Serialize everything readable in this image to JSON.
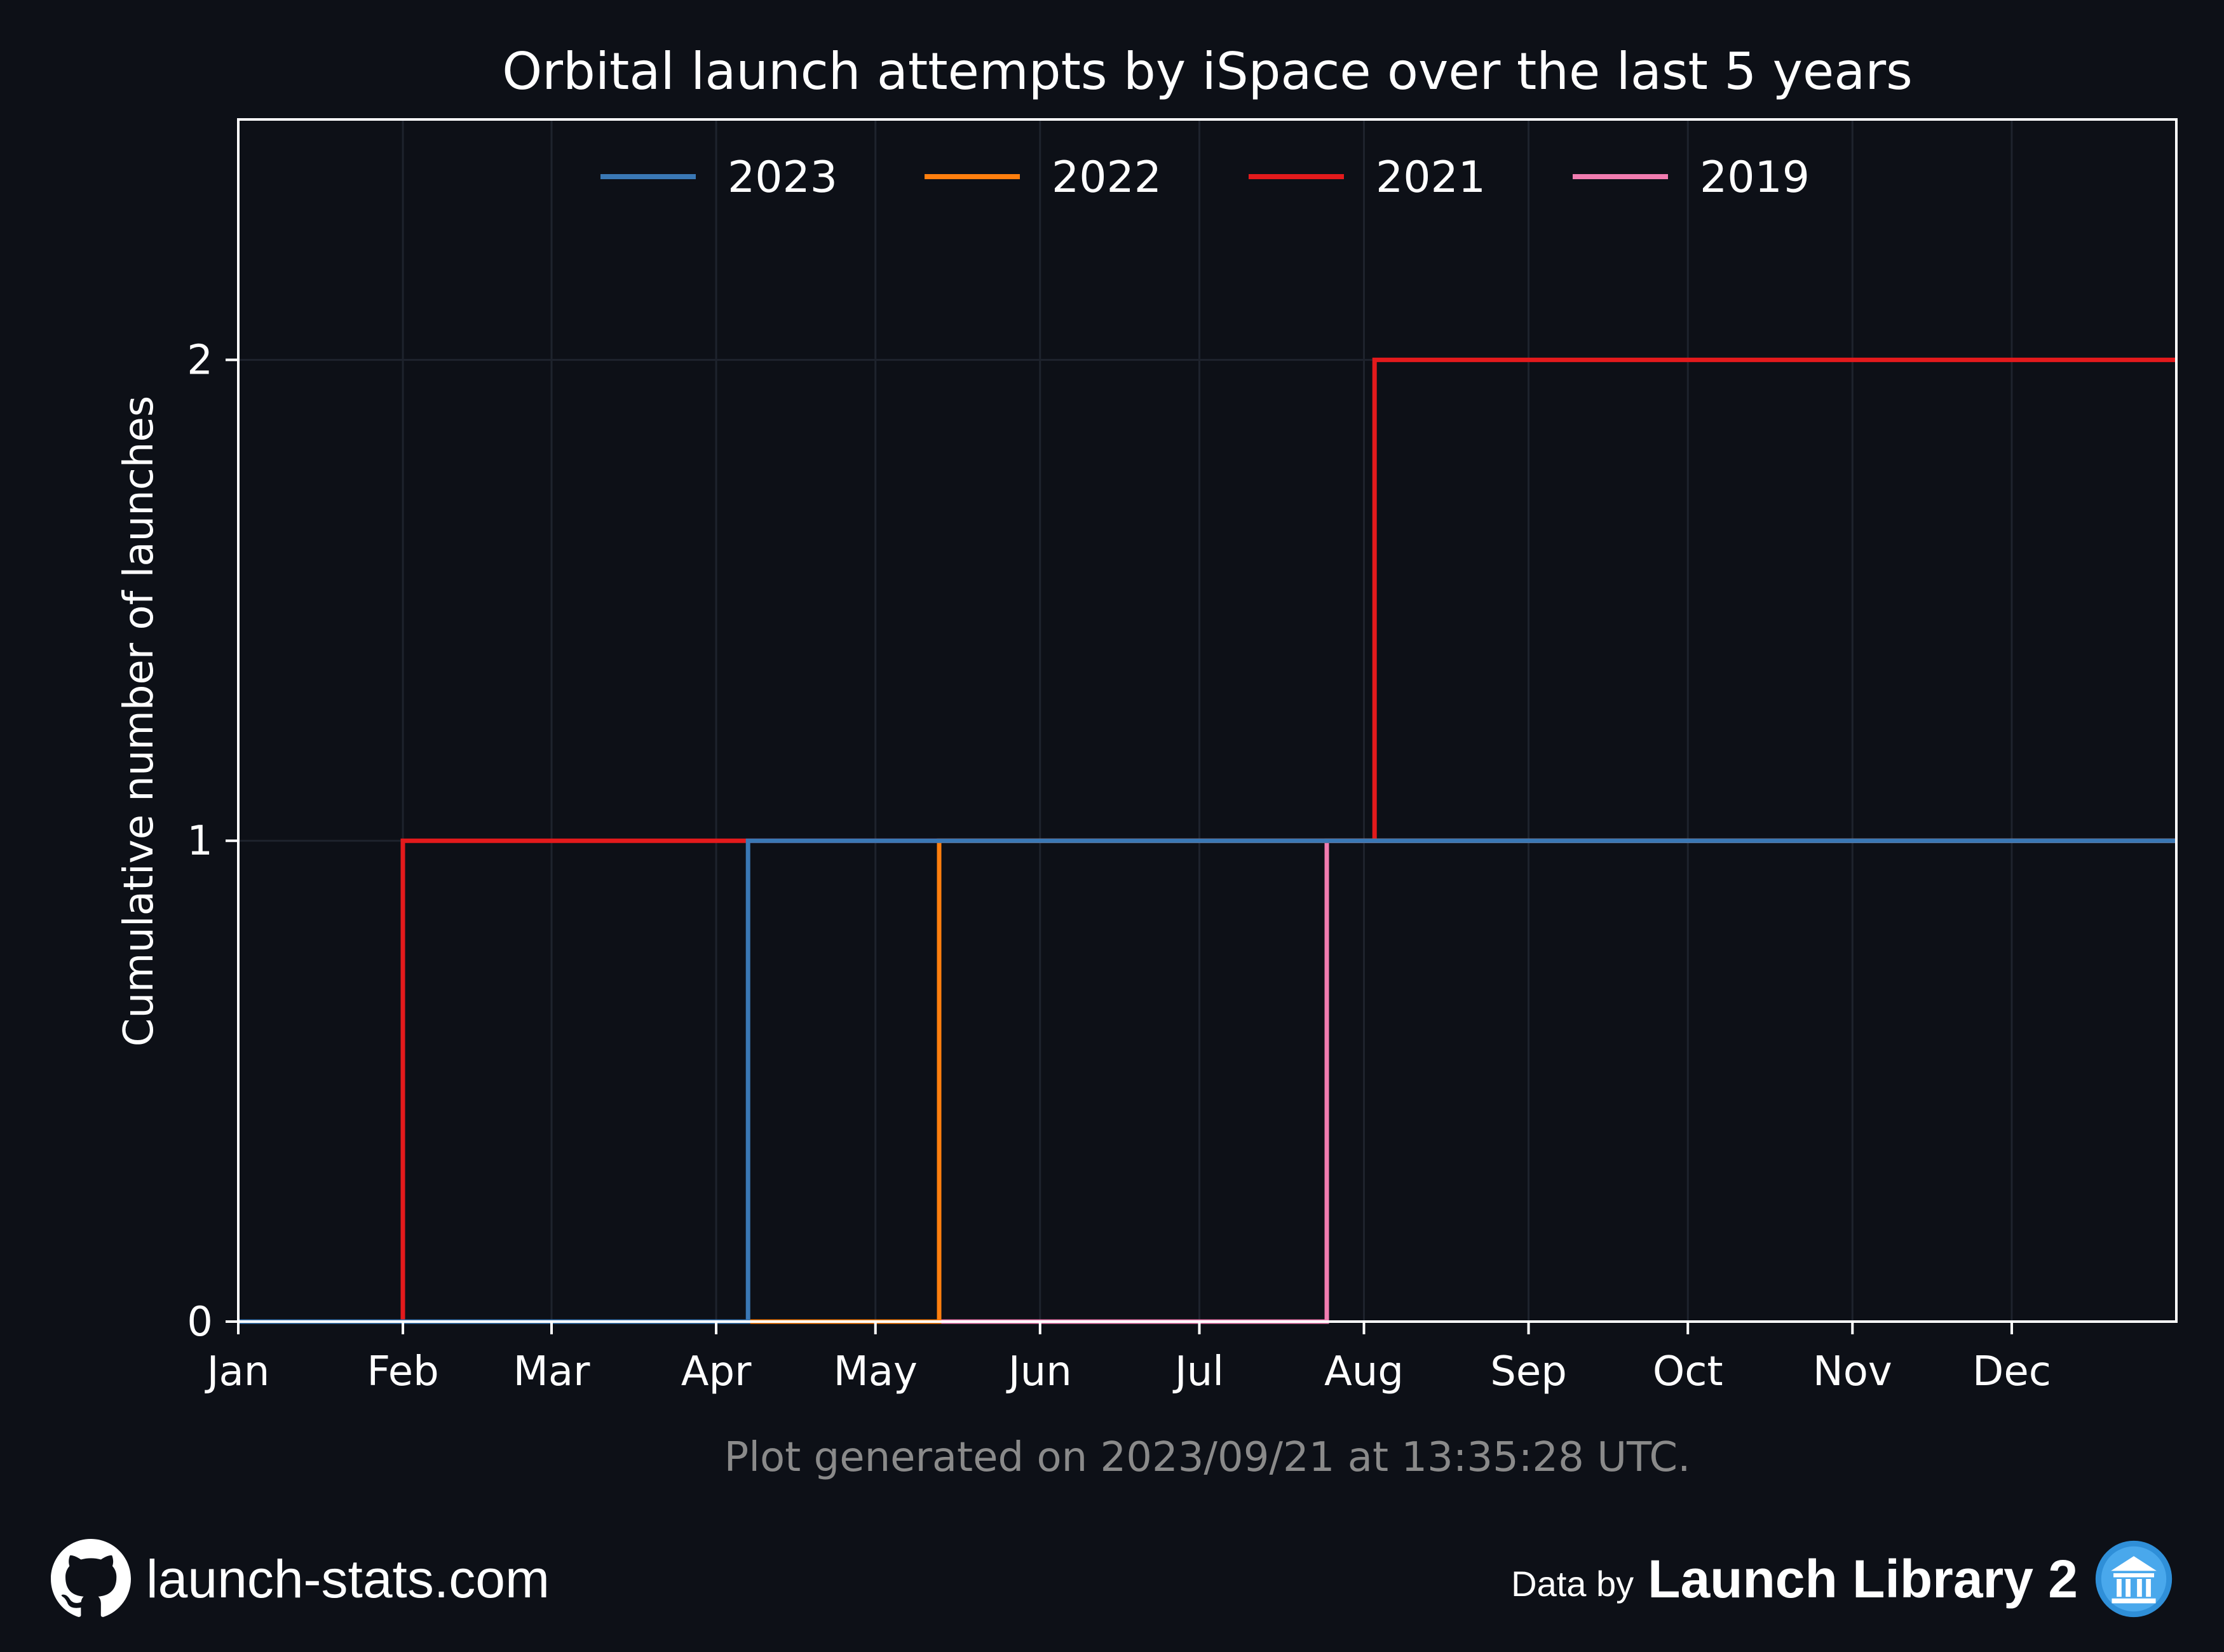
{
  "chart_data": {
    "type": "line",
    "step": true,
    "title": "Orbital launch attempts by iSpace over the last 5 years",
    "xlabel": "",
    "ylabel": "Cumulative number of launches",
    "x_tick_labels": [
      "Jan",
      "Feb",
      "Mar",
      "Apr",
      "May",
      "Jun",
      "Jul",
      "Aug",
      "Sep",
      "Oct",
      "Nov",
      "Dec"
    ],
    "y_ticks": [
      0,
      1,
      2
    ],
    "ylim": [
      0,
      2.5
    ],
    "grid": true,
    "legend": {
      "placement": "top-center",
      "columns": 4
    },
    "series": [
      {
        "name": "2023",
        "color": "#3a78b5",
        "launch_dates": [
          "2023-04-07"
        ]
      },
      {
        "name": "2022",
        "color": "#ff7f0e",
        "launch_dates": [
          "2022-05-13"
        ]
      },
      {
        "name": "2021",
        "color": "#e31a1c",
        "launch_dates": [
          "2021-02-01",
          "2021-08-03"
        ]
      },
      {
        "name": "2019",
        "color": "#f17cb0",
        "launch_dates": [
          "2019-07-25"
        ]
      }
    ]
  },
  "footer": {
    "generated_note": "Plot generated on 2023/09/21 at 13:35:28 UTC.",
    "site": "launch-stats.com",
    "data_by": "Data by",
    "source": "Launch Library 2",
    "github_icon": "github-icon",
    "source_icon": "launch-library-icon"
  }
}
